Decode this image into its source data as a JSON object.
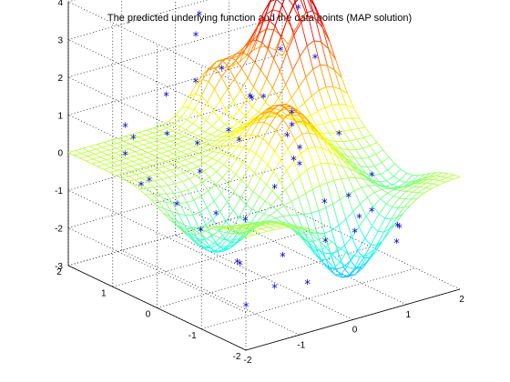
{
  "chart_data": {
    "type": "surface",
    "title": "The predicted underlying function and the data points (MAP solution)",
    "xlabel": "",
    "ylabel": "",
    "zlabel": "",
    "x_ticks": [
      "-2",
      "-1",
      "0",
      "1",
      "2"
    ],
    "y_ticks": [
      "-2",
      "-1",
      "0",
      "1",
      "2"
    ],
    "z_ticks": [
      "-3",
      "-2",
      "-1",
      "0",
      "1",
      "2",
      "3",
      "4"
    ],
    "xlim": [
      -2,
      2
    ],
    "ylim": [
      -2,
      2
    ],
    "zlim": [
      -3,
      4
    ],
    "grid": true,
    "colormap": "jet",
    "marker_color": "#0000cc",
    "marker_symbol": "*",
    "surface": {
      "x_range": [
        -2,
        2
      ],
      "y_range": [
        -2,
        2
      ],
      "function": "predicted underlying function (wireframe mesh)"
    },
    "data_points": [
      {
        "x": -1.6,
        "y": 1.2,
        "z": 0.2
      },
      {
        "x": -1.4,
        "y": 0.9,
        "z": -0.4
      },
      {
        "x": -1.3,
        "y": 0.4,
        "z": -0.8
      },
      {
        "x": -1.2,
        "y": 1.5,
        "z": 0.3
      },
      {
        "x": -1.1,
        "y": 0.1,
        "z": -1.4
      },
      {
        "x": -1.0,
        "y": -0.6,
        "z": -1.9
      },
      {
        "x": -0.9,
        "y": 1.1,
        "z": 0.5
      },
      {
        "x": -0.8,
        "y": -1.2,
        "z": -2.3
      },
      {
        "x": -0.7,
        "y": 0.6,
        "z": -0.3
      },
      {
        "x": -0.6,
        "y": -0.3,
        "z": -1.1
      },
      {
        "x": -0.5,
        "y": 1.6,
        "z": 1.1
      },
      {
        "x": -0.4,
        "y": -0.9,
        "z": -1.8
      },
      {
        "x": -0.3,
        "y": 0.2,
        "z": 0.6
      },
      {
        "x": -0.2,
        "y": 1.3,
        "z": 1.5
      },
      {
        "x": -0.1,
        "y": -1.5,
        "z": -1.2
      },
      {
        "x": 0.0,
        "y": 0.8,
        "z": 0.4
      },
      {
        "x": 0.1,
        "y": -0.4,
        "z": 0.9
      },
      {
        "x": 0.2,
        "y": 1.7,
        "z": 2.9
      },
      {
        "x": 0.3,
        "y": -1.0,
        "z": -0.6
      },
      {
        "x": 0.4,
        "y": 0.5,
        "z": 1.3
      },
      {
        "x": 0.5,
        "y": -0.2,
        "z": 0.3
      },
      {
        "x": 0.6,
        "y": 1.0,
        "z": 0.9
      },
      {
        "x": 0.7,
        "y": -1.3,
        "z": -1.0
      },
      {
        "x": 0.8,
        "y": 0.3,
        "z": -0.4
      },
      {
        "x": 0.9,
        "y": 1.4,
        "z": 0.6
      },
      {
        "x": 1.0,
        "y": -0.7,
        "z": -0.9
      },
      {
        "x": 1.1,
        "y": 0.7,
        "z": 0.5
      },
      {
        "x": 1.2,
        "y": -1.6,
        "z": -1.3
      },
      {
        "x": 1.3,
        "y": 1.2,
        "z": 1.8
      },
      {
        "x": 1.4,
        "y": 0.0,
        "z": 0.2
      },
      {
        "x": 1.5,
        "y": 1.6,
        "z": 3.2
      },
      {
        "x": 1.6,
        "y": -0.5,
        "z": -0.7
      },
      {
        "x": 1.7,
        "y": 0.9,
        "z": 1.6
      },
      {
        "x": -1.5,
        "y": -1.4,
        "z": -2.4
      },
      {
        "x": -1.2,
        "y": -0.9,
        "z": -1.7
      },
      {
        "x": -0.6,
        "y": -1.7,
        "z": -2.0
      },
      {
        "x": 0.3,
        "y": 1.9,
        "z": 2.2
      },
      {
        "x": 0.9,
        "y": -1.9,
        "z": -1.4
      },
      {
        "x": 1.8,
        "y": 1.4,
        "z": 2.6
      },
      {
        "x": -1.8,
        "y": 0.6,
        "z": -0.2
      },
      {
        "x": -0.9,
        "y": 0.0,
        "z": -1.0
      },
      {
        "x": 0.0,
        "y": -0.8,
        "z": 0.4
      },
      {
        "x": 0.6,
        "y": 0.1,
        "z": 0.7
      },
      {
        "x": 1.1,
        "y": -1.1,
        "z": -1.1
      },
      {
        "x": -0.3,
        "y": -0.6,
        "z": -0.2
      },
      {
        "x": 0.7,
        "y": 1.8,
        "z": 1.2
      },
      {
        "x": -1.1,
        "y": 1.8,
        "z": 0.4
      },
      {
        "x": 1.5,
        "y": -1.2,
        "z": -1.6
      },
      {
        "x": -0.5,
        "y": 0.9,
        "z": 0.2
      },
      {
        "x": 0.2,
        "y": -1.8,
        "z": -0.9
      }
    ]
  }
}
